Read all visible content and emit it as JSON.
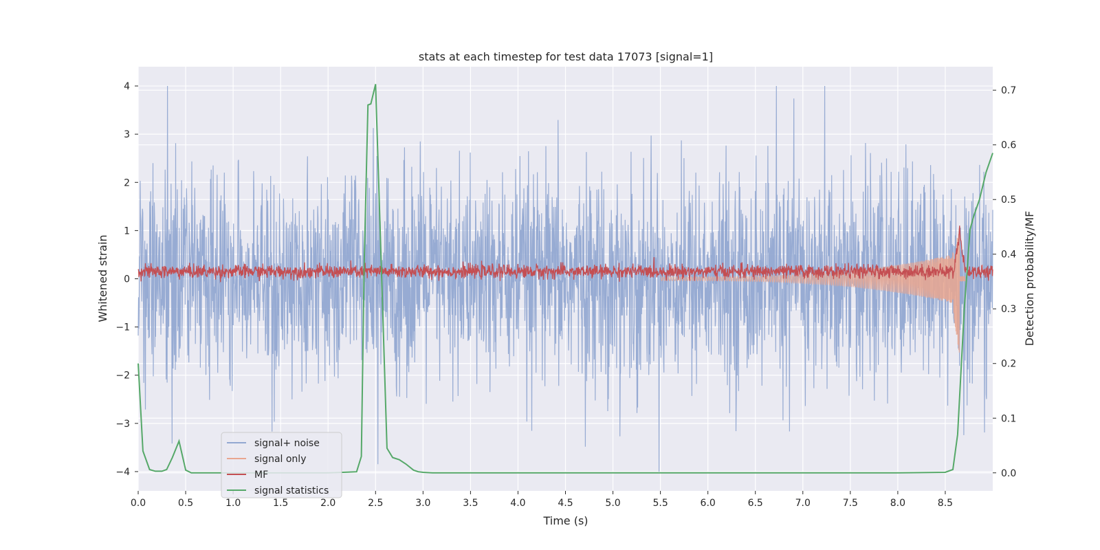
{
  "chart_data": {
    "type": "line",
    "title": "stats at each timestep for test data 17073 [signal=1]",
    "xlabel": "Time (s)",
    "ylabel_left": "Whitened strain",
    "ylabel_right": "Detection probability/MF",
    "xlim": [
      0.0,
      9.0
    ],
    "ylim_left": [
      -4.4,
      4.4
    ],
    "ylim_right": [
      -0.033,
      0.743
    ],
    "xticks": [
      "0.0",
      "0.5",
      "1.0",
      "1.5",
      "2.0",
      "2.5",
      "3.0",
      "3.5",
      "4.0",
      "4.5",
      "5.0",
      "5.5",
      "6.0",
      "6.5",
      "7.0",
      "7.5",
      "8.0",
      "8.5"
    ],
    "yticks_left": [
      "−4",
      "−3",
      "−2",
      "−1",
      "0",
      "1",
      "2",
      "3",
      "4"
    ],
    "yticks_right": [
      "0.0",
      "0.1",
      "0.2",
      "0.3",
      "0.4",
      "0.5",
      "0.6",
      "0.7"
    ],
    "grid": true,
    "legend_position": "lower-left",
    "series": [
      {
        "name": "signal+ noise",
        "color": "#92a8d1",
        "axis": "left",
        "kind": "dense noise",
        "amplitude_range": [
          -4.0,
          4.0
        ]
      },
      {
        "name": "signal only",
        "color": "#e9a68f",
        "axis": "left",
        "kind": "chirp",
        "onset": 5.5,
        "peak_time": 8.65,
        "peak_amplitude": [
          -1.6,
          1.0
        ]
      },
      {
        "name": "MF",
        "color": "#c44e52",
        "axis": "left",
        "kind": "band",
        "baseline": 0.15,
        "peak_time": 8.65,
        "peak_value": 1.0
      },
      {
        "name": "signal statistics",
        "color": "#55a868",
        "axis": "right",
        "x": [
          0.0,
          0.05,
          0.12,
          0.18,
          0.25,
          0.3,
          0.36,
          0.43,
          0.5,
          0.56,
          0.7,
          1.0,
          1.5,
          2.0,
          2.3,
          2.35,
          2.38,
          2.42,
          2.45,
          2.5,
          2.56,
          2.62,
          2.68,
          2.75,
          2.82,
          2.9,
          2.95,
          3.0,
          3.1,
          3.5,
          4.0,
          5.0,
          6.0,
          7.0,
          8.0,
          8.5,
          8.58,
          8.63,
          8.67,
          8.7,
          8.73,
          8.76,
          8.8,
          8.86,
          8.93,
          9.0
        ],
        "y": [
          0.2,
          0.04,
          0.006,
          0.003,
          0.003,
          0.006,
          0.028,
          0.058,
          0.005,
          0.0,
          0.0,
          0.0,
          0.0,
          0.0,
          0.002,
          0.03,
          0.38,
          0.673,
          0.675,
          0.711,
          0.38,
          0.045,
          0.028,
          0.024,
          0.016,
          0.005,
          0.002,
          0.001,
          0.0,
          0.0,
          0.0,
          0.0,
          0.0,
          0.0,
          0.0,
          0.001,
          0.006,
          0.07,
          0.2,
          0.3,
          0.37,
          0.445,
          0.47,
          0.5,
          0.55,
          0.585
        ]
      }
    ]
  }
}
